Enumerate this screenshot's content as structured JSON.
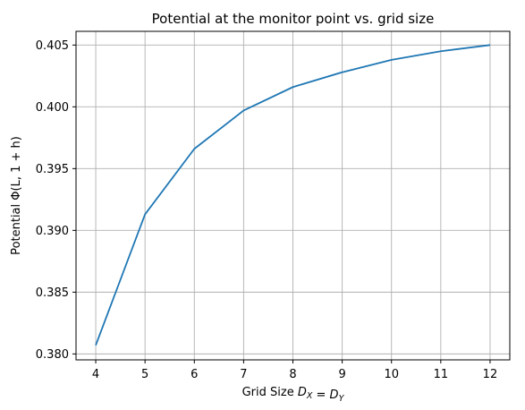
{
  "chart_data": {
    "type": "line",
    "title": "Potential at the monitor point vs. grid size",
    "xlabel": "Grid Size D_X = D_Y",
    "ylabel": "Potential Φ(L, 1 + h)",
    "x": [
      4,
      5,
      6,
      7,
      8,
      9,
      10,
      11,
      12
    ],
    "series": [
      {
        "values": [
          0.3807,
          0.3913,
          0.3966,
          0.3997,
          0.4016,
          0.4028,
          0.4038,
          0.4045,
          0.405
        ],
        "color": "#1f77b4"
      }
    ],
    "xticks": [
      "4",
      "5",
      "6",
      "7",
      "8",
      "9",
      "10",
      "11",
      "12"
    ],
    "yticks": [
      "0.380",
      "0.385",
      "0.390",
      "0.395",
      "0.400",
      "0.405"
    ],
    "ytick_values": [
      0.38,
      0.385,
      0.39,
      0.395,
      0.4,
      0.405
    ],
    "xlim": [
      3.6,
      12.4
    ],
    "ylim": [
      0.37952,
      0.40611
    ],
    "grid": true
  }
}
